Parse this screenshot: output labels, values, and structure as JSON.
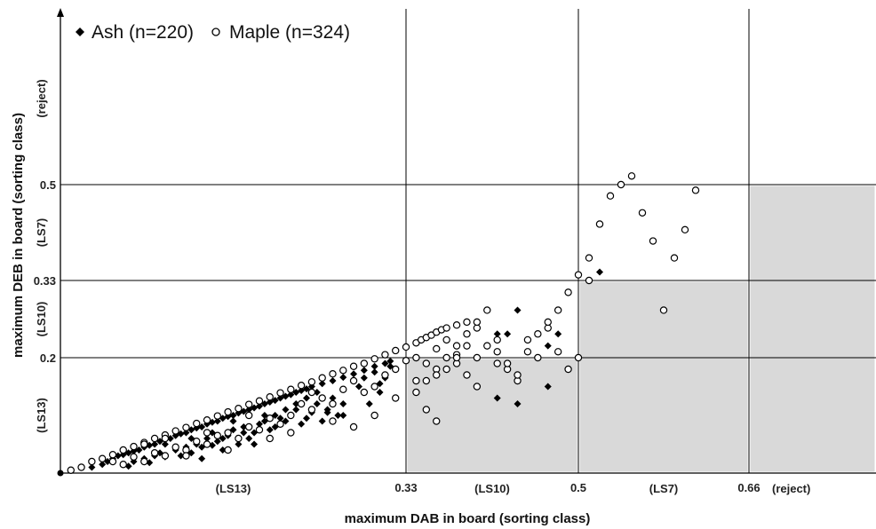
{
  "chart_data": {
    "type": "scatter",
    "xlabel": "maximum DAB in board (sorting class)",
    "ylabel": "maximum DEB in board (sorting class)",
    "xlim": [
      0,
      0.9
    ],
    "ylim": [
      0,
      0.9
    ],
    "grid": "class thresholds only",
    "legend_position": "top-left",
    "x_ticks": [
      {
        "value": 0.33,
        "label": "0.33"
      },
      {
        "value": 0.5,
        "label": "0.5"
      },
      {
        "value": 0.66,
        "label": "0.66"
      }
    ],
    "y_ticks": [
      {
        "value": 0.2,
        "label": "0.2"
      },
      {
        "value": 0.33,
        "label": "0.33"
      },
      {
        "value": 0.5,
        "label": "0.5"
      }
    ],
    "x_classes": [
      {
        "label": "(LS13)",
        "position": 0.165
      },
      {
        "label": "(LS10)",
        "position": 0.415
      },
      {
        "label": "(LS7)",
        "position": 0.58
      },
      {
        "label": "(reject)",
        "position": 0.74
      }
    ],
    "y_classes": [
      {
        "label": "(LS13)",
        "position": 0.1
      },
      {
        "label": "(LS10)",
        "position": 0.265
      },
      {
        "label": "(LS7)",
        "position": 0.415
      },
      {
        "label": "(reject)",
        "position": 0.7
      }
    ],
    "shaded_regions": [
      {
        "x": [
          0.33,
          0.5
        ],
        "y": [
          0,
          0.2
        ]
      },
      {
        "x": [
          0.5,
          0.66
        ],
        "y": [
          0,
          0.33
        ]
      },
      {
        "x": [
          0.66,
          0.9
        ],
        "y": [
          0,
          0.5
        ]
      }
    ],
    "colors": {
      "shade": "#d9d9d9",
      "ash": "#000000",
      "maple_stroke": "#000000",
      "grid": "#000000"
    },
    "series": [
      {
        "name": "Ash (n=220)",
        "marker": "diamond",
        "points": [
          [
            0.03,
            0.01
          ],
          [
            0.04,
            0.015
          ],
          [
            0.045,
            0.02
          ],
          [
            0.05,
            0.025
          ],
          [
            0.055,
            0.03
          ],
          [
            0.06,
            0.032
          ],
          [
            0.065,
            0.035
          ],
          [
            0.07,
            0.038
          ],
          [
            0.075,
            0.04
          ],
          [
            0.08,
            0.045
          ],
          [
            0.085,
            0.048
          ],
          [
            0.09,
            0.05
          ],
          [
            0.095,
            0.055
          ],
          [
            0.1,
            0.058
          ],
          [
            0.105,
            0.06
          ],
          [
            0.11,
            0.065
          ],
          [
            0.115,
            0.068
          ],
          [
            0.12,
            0.07
          ],
          [
            0.125,
            0.075
          ],
          [
            0.13,
            0.078
          ],
          [
            0.135,
            0.08
          ],
          [
            0.14,
            0.085
          ],
          [
            0.145,
            0.088
          ],
          [
            0.15,
            0.09
          ],
          [
            0.155,
            0.095
          ],
          [
            0.16,
            0.098
          ],
          [
            0.165,
            0.1
          ],
          [
            0.17,
            0.104
          ],
          [
            0.175,
            0.107
          ],
          [
            0.18,
            0.11
          ],
          [
            0.185,
            0.113
          ],
          [
            0.19,
            0.116
          ],
          [
            0.195,
            0.12
          ],
          [
            0.2,
            0.123
          ],
          [
            0.205,
            0.126
          ],
          [
            0.21,
            0.13
          ],
          [
            0.215,
            0.133
          ],
          [
            0.22,
            0.136
          ],
          [
            0.225,
            0.14
          ],
          [
            0.23,
            0.143
          ],
          [
            0.235,
            0.146
          ],
          [
            0.24,
            0.15
          ],
          [
            0.25,
            0.155
          ],
          [
            0.26,
            0.16
          ],
          [
            0.27,
            0.166
          ],
          [
            0.28,
            0.172
          ],
          [
            0.29,
            0.178
          ],
          [
            0.3,
            0.185
          ],
          [
            0.31,
            0.19
          ],
          [
            0.315,
            0.194
          ],
          [
            0.06,
            0.015
          ],
          [
            0.065,
            0.012
          ],
          [
            0.07,
            0.02
          ],
          [
            0.08,
            0.025
          ],
          [
            0.085,
            0.018
          ],
          [
            0.09,
            0.03
          ],
          [
            0.095,
            0.035
          ],
          [
            0.1,
            0.028
          ],
          [
            0.11,
            0.04
          ],
          [
            0.12,
            0.045
          ],
          [
            0.125,
            0.035
          ],
          [
            0.13,
            0.05
          ],
          [
            0.135,
            0.025
          ],
          [
            0.14,
            0.06
          ],
          [
            0.145,
            0.048
          ],
          [
            0.15,
            0.055
          ],
          [
            0.155,
            0.04
          ],
          [
            0.16,
            0.065
          ],
          [
            0.165,
            0.075
          ],
          [
            0.17,
            0.05
          ],
          [
            0.175,
            0.08
          ],
          [
            0.18,
            0.06
          ],
          [
            0.185,
            0.07
          ],
          [
            0.19,
            0.085
          ],
          [
            0.195,
            0.09
          ],
          [
            0.2,
            0.075
          ],
          [
            0.205,
            0.1
          ],
          [
            0.21,
            0.095
          ],
          [
            0.215,
            0.11
          ],
          [
            0.22,
            0.07
          ],
          [
            0.225,
            0.12
          ],
          [
            0.23,
            0.085
          ],
          [
            0.235,
            0.13
          ],
          [
            0.24,
            0.105
          ],
          [
            0.245,
            0.14
          ],
          [
            0.25,
            0.09
          ],
          [
            0.255,
            0.11
          ],
          [
            0.26,
            0.13
          ],
          [
            0.265,
            0.1
          ],
          [
            0.27,
            0.12
          ],
          [
            0.28,
            0.08
          ],
          [
            0.29,
            0.165
          ],
          [
            0.3,
            0.175
          ],
          [
            0.305,
            0.155
          ],
          [
            0.31,
            0.165
          ],
          [
            0.315,
            0.185
          ],
          [
            0.1,
            0.05
          ],
          [
            0.115,
            0.03
          ],
          [
            0.125,
            0.06
          ],
          [
            0.135,
            0.045
          ],
          [
            0.145,
            0.07
          ],
          [
            0.155,
            0.06
          ],
          [
            0.165,
            0.09
          ],
          [
            0.175,
            0.07
          ],
          [
            0.185,
            0.05
          ],
          [
            0.195,
            0.1
          ],
          [
            0.205,
            0.08
          ],
          [
            0.215,
            0.09
          ],
          [
            0.225,
            0.11
          ],
          [
            0.235,
            0.095
          ],
          [
            0.245,
            0.12
          ],
          [
            0.255,
            0.105
          ],
          [
            0.27,
            0.1
          ],
          [
            0.285,
            0.15
          ],
          [
            0.295,
            0.12
          ],
          [
            0.305,
            0.14
          ],
          [
            0.44,
            0.28
          ],
          [
            0.43,
            0.24
          ],
          [
            0.42,
            0.24
          ],
          [
            0.48,
            0.24
          ],
          [
            0.47,
            0.22
          ],
          [
            0.42,
            0.13
          ],
          [
            0.44,
            0.12
          ],
          [
            0.47,
            0.15
          ],
          [
            0.52,
            0.345
          ]
        ]
      },
      {
        "name": "Maple (n=324)",
        "marker": "circle",
        "points": [
          [
            0.01,
            0.005
          ],
          [
            0.02,
            0.01
          ],
          [
            0.03,
            0.02
          ],
          [
            0.04,
            0.025
          ],
          [
            0.05,
            0.032
          ],
          [
            0.06,
            0.04
          ],
          [
            0.07,
            0.046
          ],
          [
            0.08,
            0.053
          ],
          [
            0.09,
            0.06
          ],
          [
            0.1,
            0.066
          ],
          [
            0.11,
            0.073
          ],
          [
            0.12,
            0.079
          ],
          [
            0.13,
            0.086
          ],
          [
            0.14,
            0.092
          ],
          [
            0.15,
            0.099
          ],
          [
            0.16,
            0.106
          ],
          [
            0.17,
            0.112
          ],
          [
            0.18,
            0.119
          ],
          [
            0.19,
            0.125
          ],
          [
            0.2,
            0.132
          ],
          [
            0.21,
            0.139
          ],
          [
            0.22,
            0.145
          ],
          [
            0.23,
            0.152
          ],
          [
            0.24,
            0.158
          ],
          [
            0.25,
            0.165
          ],
          [
            0.26,
            0.172
          ],
          [
            0.27,
            0.178
          ],
          [
            0.28,
            0.185
          ],
          [
            0.29,
            0.19
          ],
          [
            0.3,
            0.198
          ],
          [
            0.31,
            0.205
          ],
          [
            0.32,
            0.212
          ],
          [
            0.33,
            0.218
          ],
          [
            0.34,
            0.225
          ],
          [
            0.345,
            0.23
          ],
          [
            0.35,
            0.234
          ],
          [
            0.355,
            0.238
          ],
          [
            0.36,
            0.243
          ],
          [
            0.365,
            0.247
          ],
          [
            0.37,
            0.25
          ],
          [
            0.38,
            0.255
          ],
          [
            0.39,
            0.26
          ],
          [
            0.05,
            0.02
          ],
          [
            0.06,
            0.015
          ],
          [
            0.07,
            0.028
          ],
          [
            0.08,
            0.02
          ],
          [
            0.09,
            0.035
          ],
          [
            0.1,
            0.03
          ],
          [
            0.11,
            0.045
          ],
          [
            0.12,
            0.04
          ],
          [
            0.13,
            0.055
          ],
          [
            0.14,
            0.05
          ],
          [
            0.15,
            0.065
          ],
          [
            0.16,
            0.07
          ],
          [
            0.17,
            0.06
          ],
          [
            0.18,
            0.08
          ],
          [
            0.19,
            0.075
          ],
          [
            0.2,
            0.095
          ],
          [
            0.21,
            0.085
          ],
          [
            0.22,
            0.1
          ],
          [
            0.23,
            0.12
          ],
          [
            0.24,
            0.11
          ],
          [
            0.25,
            0.13
          ],
          [
            0.26,
            0.09
          ],
          [
            0.27,
            0.145
          ],
          [
            0.28,
            0.16
          ],
          [
            0.29,
            0.14
          ],
          [
            0.3,
            0.15
          ],
          [
            0.31,
            0.17
          ],
          [
            0.32,
            0.18
          ],
          [
            0.33,
            0.195
          ],
          [
            0.34,
            0.2
          ],
          [
            0.35,
            0.19
          ],
          [
            0.36,
            0.215
          ],
          [
            0.37,
            0.23
          ],
          [
            0.38,
            0.205
          ],
          [
            0.39,
            0.22
          ],
          [
            0.4,
            0.25
          ],
          [
            0.08,
            0.05
          ],
          [
            0.1,
            0.06
          ],
          [
            0.12,
            0.03
          ],
          [
            0.14,
            0.07
          ],
          [
            0.16,
            0.04
          ],
          [
            0.18,
            0.1
          ],
          [
            0.2,
            0.06
          ],
          [
            0.22,
            0.07
          ],
          [
            0.24,
            0.14
          ],
          [
            0.26,
            0.12
          ],
          [
            0.28,
            0.08
          ],
          [
            0.3,
            0.1
          ],
          [
            0.32,
            0.13
          ],
          [
            0.34,
            0.16
          ],
          [
            0.36,
            0.18
          ],
          [
            0.38,
            0.19
          ],
          [
            0.4,
            0.2
          ],
          [
            0.42,
            0.21
          ],
          [
            0.35,
            0.11
          ],
          [
            0.36,
            0.09
          ],
          [
            0.37,
            0.18
          ],
          [
            0.38,
            0.2
          ],
          [
            0.39,
            0.17
          ],
          [
            0.4,
            0.15
          ],
          [
            0.41,
            0.22
          ],
          [
            0.42,
            0.19
          ],
          [
            0.43,
            0.18
          ],
          [
            0.44,
            0.16
          ],
          [
            0.45,
            0.23
          ],
          [
            0.46,
            0.2
          ],
          [
            0.47,
            0.25
          ],
          [
            0.48,
            0.28
          ],
          [
            0.49,
            0.31
          ],
          [
            0.5,
            0.34
          ],
          [
            0.51,
            0.37
          ],
          [
            0.52,
            0.43
          ],
          [
            0.53,
            0.48
          ],
          [
            0.54,
            0.5
          ],
          [
            0.55,
            0.52
          ],
          [
            0.56,
            0.45
          ],
          [
            0.57,
            0.4
          ],
          [
            0.58,
            0.28
          ],
          [
            0.59,
            0.37
          ],
          [
            0.6,
            0.42
          ],
          [
            0.61,
            0.49
          ],
          [
            0.34,
            0.14
          ],
          [
            0.35,
            0.16
          ],
          [
            0.36,
            0.17
          ],
          [
            0.37,
            0.2
          ],
          [
            0.38,
            0.22
          ],
          [
            0.39,
            0.24
          ],
          [
            0.4,
            0.26
          ],
          [
            0.41,
            0.28
          ],
          [
            0.42,
            0.23
          ],
          [
            0.43,
            0.19
          ],
          [
            0.44,
            0.17
          ],
          [
            0.45,
            0.21
          ],
          [
            0.46,
            0.24
          ],
          [
            0.47,
            0.26
          ],
          [
            0.48,
            0.21
          ],
          [
            0.49,
            0.18
          ],
          [
            0.5,
            0.2
          ],
          [
            0.51,
            0.33
          ]
        ]
      }
    ]
  }
}
